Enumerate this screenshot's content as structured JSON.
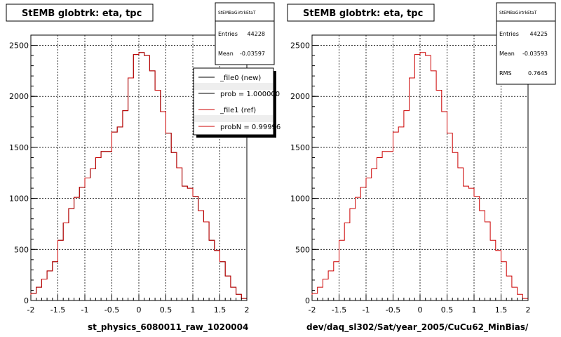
{
  "chart_data": [
    {
      "type": "bar",
      "title": "StEMB globtrk: eta, tpc",
      "xlabel": "st_physics_6080011_raw_1020004",
      "ylabel": "",
      "xlim": [
        -2,
        2
      ],
      "ylim": [
        0,
        2600
      ],
      "x_ticks": [
        "-2",
        "-1.5",
        "-1",
        "-0.5",
        "0",
        "0.5",
        "1",
        "1.5",
        "2"
      ],
      "y_ticks": [
        "0",
        "500",
        "1000",
        "1500",
        "2000",
        "2500"
      ],
      "grid": true,
      "bin_edges_start": -2,
      "bin_width": 0.1,
      "series": [
        {
          "name": "_file0 (new)",
          "color": "#000000",
          "values": [
            70,
            130,
            210,
            290,
            380,
            590,
            760,
            900,
            1010,
            1110,
            1200,
            1290,
            1400,
            1460,
            1460,
            1650,
            1700,
            1860,
            2180,
            2410,
            2430,
            2400,
            2250,
            2060,
            1850,
            1640,
            1450,
            1300,
            1120,
            1100,
            1020,
            880,
            770,
            590,
            490,
            380,
            240,
            130,
            60,
            20
          ]
        },
        {
          "name": "_file1 (ref)",
          "color": "#cc0000",
          "values": [
            70,
            130,
            210,
            290,
            380,
            590,
            760,
            900,
            1010,
            1110,
            1200,
            1290,
            1400,
            1460,
            1460,
            1650,
            1700,
            1860,
            2180,
            2410,
            2430,
            2400,
            2250,
            2060,
            1850,
            1640,
            1450,
            1300,
            1120,
            1100,
            1020,
            880,
            770,
            590,
            490,
            380,
            240,
            130,
            60,
            20
          ]
        }
      ],
      "stats": {
        "name": "StEMBaGirtrkEtaT",
        "entries_label": "Entries",
        "entries": "44228",
        "mean_label": "Mean",
        "mean": "-0.03597"
      },
      "legend_placement": "top-right",
      "legend_entries": [
        "_file0 (new)",
        "prob = 1.000000",
        "_file1 (ref)",
        "probN = 0.99996"
      ]
    },
    {
      "type": "bar",
      "title": "StEMB globtrk: eta, tpc",
      "xlabel": "dev/daq_sl302/Sat/year_2005/CuCu62_MinBias/",
      "ylabel": "",
      "xlim": [
        -2,
        2
      ],
      "ylim": [
        0,
        2600
      ],
      "x_ticks": [
        "-2",
        "-1.5",
        "-1",
        "-0.5",
        "0",
        "0.5",
        "1",
        "1.5",
        "2"
      ],
      "y_ticks": [
        "0",
        "500",
        "1000",
        "1500",
        "2000",
        "2500"
      ],
      "grid": true,
      "bin_edges_start": -2,
      "bin_width": 0.1,
      "series": [
        {
          "color": "#cc0000",
          "values": [
            70,
            130,
            210,
            290,
            380,
            590,
            760,
            900,
            1010,
            1110,
            1200,
            1290,
            1400,
            1460,
            1460,
            1650,
            1700,
            1860,
            2180,
            2410,
            2430,
            2400,
            2250,
            2060,
            1850,
            1640,
            1450,
            1300,
            1120,
            1100,
            1020,
            880,
            770,
            590,
            490,
            380,
            240,
            130,
            60,
            20
          ]
        }
      ],
      "stats": {
        "name": "StEMBaGirtrkEtaT",
        "entries_label": "Entries",
        "entries": "44225",
        "mean_label": "Mean",
        "mean": "-0.03593",
        "rms_label": "RMS",
        "rms": "0.7645"
      }
    }
  ]
}
